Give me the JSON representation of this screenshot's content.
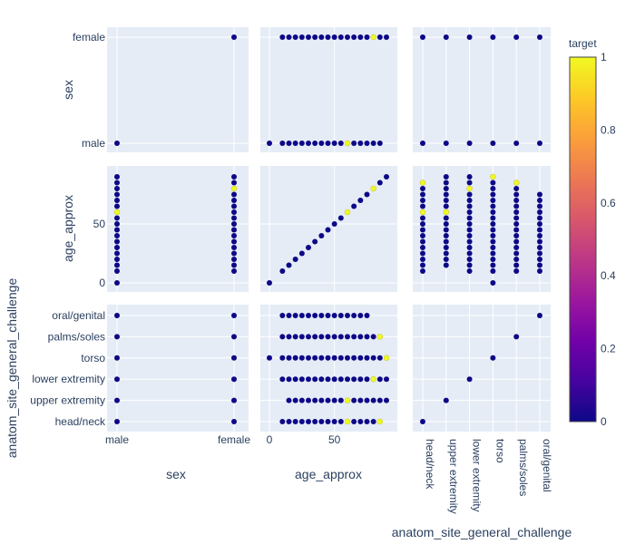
{
  "chart_data": {
    "type": "scatter",
    "kind": "scatter-matrix",
    "dimensions": [
      "sex",
      "age_approx",
      "anatom_site_general_challenge"
    ],
    "dimension_types": [
      "categorical",
      "numeric",
      "categorical"
    ],
    "categories": {
      "sex": [
        "male",
        "female"
      ],
      "anatom_site_general_challenge": [
        "head/neck",
        "upper extremity",
        "lower extremity",
        "torso",
        "palms/soles",
        "oral/genital"
      ]
    },
    "age_range": [
      0,
      90
    ],
    "age_ticks": [
      0,
      50
    ],
    "row_labels": {
      "sex": "sex",
      "age_approx": "age_approx",
      "anatom_site_general_challenge": "anatom_site_general_challenge"
    },
    "col_labels": {
      "sex": "sex",
      "age_approx": "age_approx",
      "anatom_site_general_challenge": "anatom_site_general_challenge"
    },
    "colorbar": {
      "title": "target",
      "ticks": [
        "0",
        "0.2",
        "0.4",
        "0.6",
        "0.8",
        "1"
      ],
      "range": [
        0,
        1
      ]
    },
    "colors": {
      "low": "#0d0887",
      "high": "#f0f921",
      "plot_bg": "#e5ecf6",
      "grid": "#ffffff",
      "text": "#2a3f5f"
    },
    "points": {
      "sex_age": {
        "male": [
          0,
          10,
          15,
          20,
          25,
          30,
          35,
          40,
          45,
          50,
          55,
          60,
          65,
          70,
          75,
          80,
          85,
          90
        ],
        "female": [
          10,
          15,
          20,
          25,
          30,
          35,
          40,
          45,
          50,
          55,
          60,
          65,
          70,
          75,
          80,
          85,
          90
        ],
        "positives": [
          [
            "male",
            60
          ],
          [
            "female",
            80
          ]
        ]
      },
      "age_site": {
        "head/neck": [
          10,
          15,
          20,
          25,
          30,
          35,
          40,
          45,
          50,
          55,
          60,
          65,
          70,
          75,
          80,
          85
        ],
        "upper extremity": [
          15,
          20,
          25,
          30,
          35,
          40,
          45,
          50,
          55,
          60,
          65,
          70,
          75,
          80,
          85,
          90
        ],
        "lower extremity": [
          10,
          15,
          20,
          25,
          30,
          35,
          40,
          45,
          50,
          55,
          60,
          65,
          70,
          75,
          80,
          85,
          90
        ],
        "torso": [
          0,
          10,
          15,
          20,
          25,
          30,
          35,
          40,
          45,
          50,
          55,
          60,
          65,
          70,
          75,
          80,
          85,
          90
        ],
        "palms/soles": [
          10,
          15,
          20,
          25,
          30,
          35,
          40,
          45,
          50,
          55,
          60,
          65,
          70,
          75,
          80,
          85
        ],
        "oral/genital": [
          10,
          15,
          20,
          25,
          30,
          35,
          40,
          45,
          50,
          55,
          60,
          65,
          70,
          75
        ],
        "positives": [
          [
            "head/neck",
            60
          ],
          [
            "head/neck",
            85
          ],
          [
            "upper extremity",
            60
          ],
          [
            "lower extremity",
            80
          ],
          [
            "torso",
            90
          ],
          [
            "palms/soles",
            85
          ]
        ]
      },
      "sex_site": {
        "male": [
          "head/neck",
          "upper extremity",
          "lower extremity",
          "torso",
          "palms/soles",
          "oral/genital"
        ],
        "female": [
          "head/neck",
          "upper extremity",
          "lower extremity",
          "torso",
          "palms/soles",
          "oral/genital"
        ]
      },
      "diagonal_age": [
        0,
        10,
        15,
        20,
        25,
        30,
        35,
        40,
        45,
        50,
        55,
        60,
        65,
        70,
        75,
        80,
        85,
        90
      ],
      "diagonal_age_positives": [
        60,
        80
      ],
      "diagonal_sex": [
        "male",
        "female"
      ],
      "diagonal_site": [
        "head/neck",
        "upper extremity",
        "lower extremity",
        "torso",
        "palms/soles",
        "oral/genital"
      ]
    }
  }
}
